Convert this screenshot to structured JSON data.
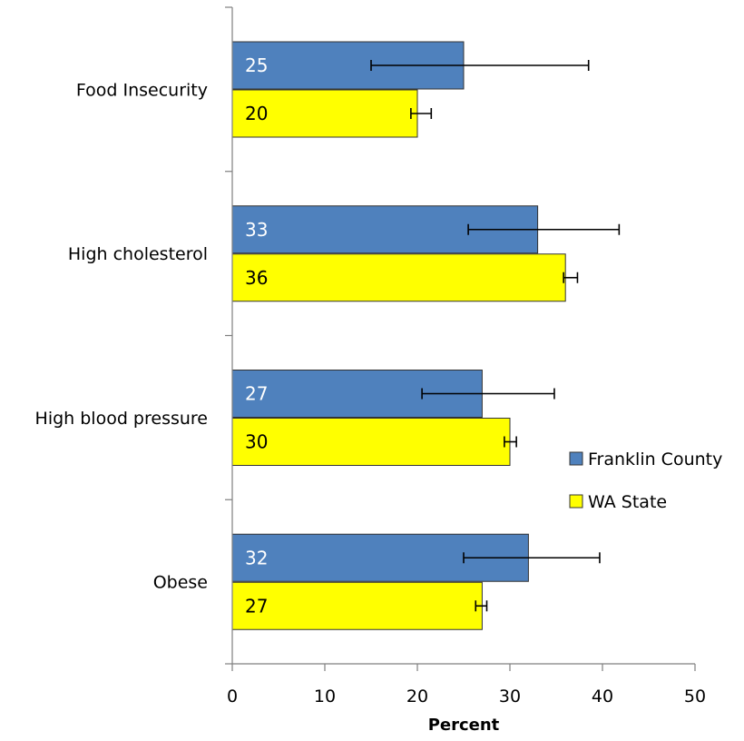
{
  "chart_data": {
    "type": "bar",
    "orientation": "horizontal",
    "categories": [
      "Food Insecurity",
      "High cholesterol",
      "High blood pressure",
      "Obese"
    ],
    "series": [
      {
        "name": "Franklin County",
        "color": "#4F81BD",
        "label_color": "#ffffff",
        "values": [
          25,
          33,
          27,
          32
        ],
        "error_low": [
          15,
          25.5,
          20.5,
          25
        ],
        "error_high": [
          38.5,
          41.8,
          34.8,
          39.7
        ]
      },
      {
        "name": "WA State",
        "color": "#FFFF00",
        "label_color": "#000000",
        "values": [
          20,
          36,
          30,
          27
        ],
        "error_low": [
          19.3,
          35.8,
          29.4,
          26.3
        ],
        "error_high": [
          21.5,
          37.3,
          30.7,
          27.5
        ]
      }
    ],
    "xlabel": "Percent",
    "ylabel": "",
    "xlim": [
      0,
      50
    ],
    "xticks": [
      0,
      10,
      20,
      30,
      40,
      50
    ],
    "grid": false,
    "legend_position": "right"
  }
}
